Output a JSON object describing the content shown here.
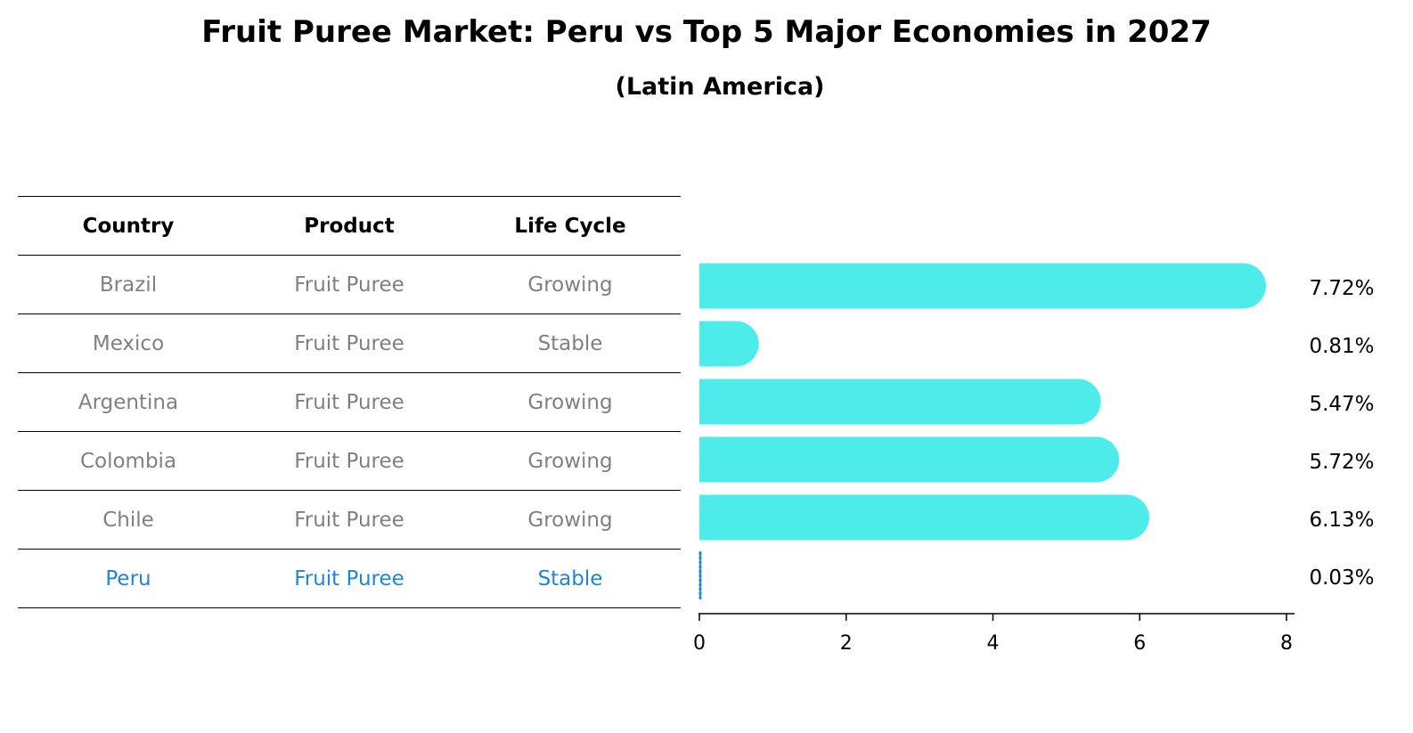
{
  "title": "Fruit Puree Market: Peru vs Top 5 Major Economies in 2027",
  "subtitle": "(Latin America)",
  "table": {
    "headers": [
      "Country",
      "Product",
      "Life Cycle"
    ],
    "rows": [
      {
        "country": "Brazil",
        "product": "Fruit Puree",
        "life_cycle": "Growing"
      },
      {
        "country": "Mexico",
        "product": "Fruit Puree",
        "life_cycle": "Stable"
      },
      {
        "country": "Argentina",
        "product": "Fruit Puree",
        "life_cycle": "Growing"
      },
      {
        "country": "Colombia",
        "product": "Fruit Puree",
        "life_cycle": "Growing"
      },
      {
        "country": "Chile",
        "product": "Fruit Puree",
        "life_cycle": "Growing"
      },
      {
        "country": "Peru",
        "product": "Fruit Puree",
        "life_cycle": "Stable"
      }
    ],
    "highlight_row": "Peru"
  },
  "colors": {
    "bar": "#4deceb",
    "highlight": "#1f86d6",
    "muted_text": "#808080"
  },
  "chart_data": {
    "type": "bar",
    "orientation": "horizontal",
    "categories": [
      "Brazil",
      "Mexico",
      "Argentina",
      "Colombia",
      "Chile",
      "Peru"
    ],
    "values": [
      7.72,
      0.81,
      5.47,
      5.72,
      6.13,
      0.03
    ],
    "value_labels": [
      "7.72%",
      "0.81%",
      "5.47%",
      "5.72%",
      "6.13%",
      "0.03%"
    ],
    "xlim": [
      0,
      8
    ],
    "xticks": [
      "0",
      "2",
      "4",
      "6",
      "8"
    ],
    "title": "",
    "xlabel": "",
    "ylabel": "",
    "grid": false
  }
}
